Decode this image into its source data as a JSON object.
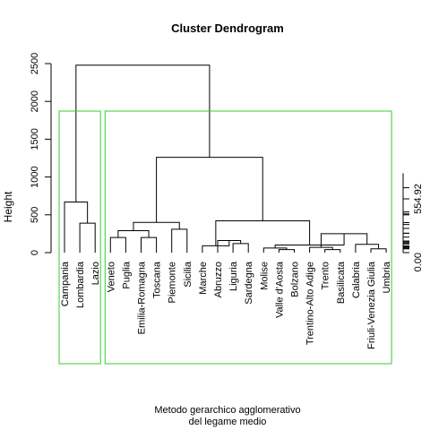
{
  "chart_data": {
    "type": "dendrogram",
    "title": "Cluster Dendrogram",
    "ylabel": "Height",
    "xlabel_lines": [
      "Metodo gerarchico agglomerativo",
      "del legame medio"
    ],
    "ylim": [
      0,
      2500
    ],
    "yticks": [
      0,
      500,
      1000,
      1500,
      2000,
      2500
    ],
    "leaves": [
      "Campania",
      "Lombardia",
      "Lazio",
      "Veneto",
      "Puglia",
      "Emilia-Romagna",
      "Toscana",
      "Piemonte",
      "Sicilia",
      "Marche",
      "Abruzzo",
      "Liguria",
      "Sardegna",
      "Molise",
      "Valle d'Aosta",
      "Bolzano",
      "Trentino-Alto Adige",
      "Trento",
      "Basilicata",
      "Calabria",
      "Friuli-Venezia Giulia",
      "Umbria"
    ],
    "merges": [
      {
        "a": "Lombardia",
        "b": "Lazio",
        "height": 390
      },
      {
        "a": "Campania",
        "b": "(Lombardia, Lazio)",
        "height": 670
      },
      {
        "a": "Veneto",
        "b": "Puglia",
        "height": 200
      },
      {
        "a": "Emilia-Romagna",
        "b": "Toscana",
        "height": 200
      },
      {
        "a": "(Veneto, Puglia)",
        "b": "(Emilia-Romagna, Toscana)",
        "height": 290
      },
      {
        "a": "Piemonte",
        "b": "Sicilia",
        "height": 310
      },
      {
        "a": "(Veneto … Toscana)",
        "b": "(Piemonte, Sicilia)",
        "height": 400
      },
      {
        "a": "Liguria",
        "b": "Sardegna",
        "height": 120
      },
      {
        "a": "Abruzzo",
        "b": "(Liguria, Sardegna)",
        "height": 160
      },
      {
        "a": "Marche",
        "b": "(Abruzzo … Sardegna)",
        "height": 90
      },
      {
        "a": "Valle d'Aosta",
        "b": "Bolzano",
        "height": 40
      },
      {
        "a": "Trento",
        "b": "Basilicata",
        "height": 40
      },
      {
        "a": "Trentino-Alto Adige",
        "b": "(Trento, Basilicata)",
        "height": 70
      },
      {
        "a": "Friuli-Venezia Giulia",
        "b": "Umbria",
        "height": 50
      },
      {
        "a": "Calabria",
        "b": "(Friuli-Venezia Giulia, Umbria)",
        "height": 110
      },
      {
        "a": "(Trentino-Alto Adige … Basilicata)",
        "b": "(Calabria … Umbria)",
        "height": 250
      },
      {
        "a": "Molise",
        "b": "(Valle d'Aosta, Bolzano)",
        "height": 60
      },
      {
        "a": "(Molise … Bolzano)",
        "b": "(Trentino-Alto Adige … Umbria)",
        "height": 100
      },
      {
        "a": "(Marche … Sardegna)",
        "b": "(Molise … Umbria)",
        "height": 420
      },
      {
        "a": "(Veneto … Sicilia)",
        "b": "(Marche … Umbria)",
        "height": 1260
      },
      {
        "a": "(Campania, Lombardia, Lazio)",
        "b": "(Veneto … Umbria)",
        "height": 2480
      }
    ],
    "clusters": [
      {
        "members": [
          "Campania",
          "Lombardia",
          "Lazio"
        ],
        "color": "#33cc33"
      },
      {
        "members": [
          "Veneto",
          "Puglia",
          "Emilia-Romagna",
          "Toscana",
          "Piemonte",
          "Sicilia",
          "Marche",
          "Abruzzo",
          "Liguria",
          "Sardegna",
          "Molise",
          "Valle d'Aosta",
          "Bolzano",
          "Trentino-Alto Adige",
          "Trento",
          "Basilicata",
          "Calabria",
          "Friuli-Venezia Giulia",
          "Umbria"
        ],
        "color": "#33cc33"
      }
    ],
    "side_axis": {
      "tick_labels": [
        "0.00",
        "554.92"
      ],
      "rug_values": [
        0,
        40,
        40,
        50,
        60,
        70,
        90,
        100,
        110,
        120,
        160,
        200,
        200,
        250,
        290,
        310,
        390,
        400,
        420,
        670,
        1260,
        2480
      ]
    }
  }
}
